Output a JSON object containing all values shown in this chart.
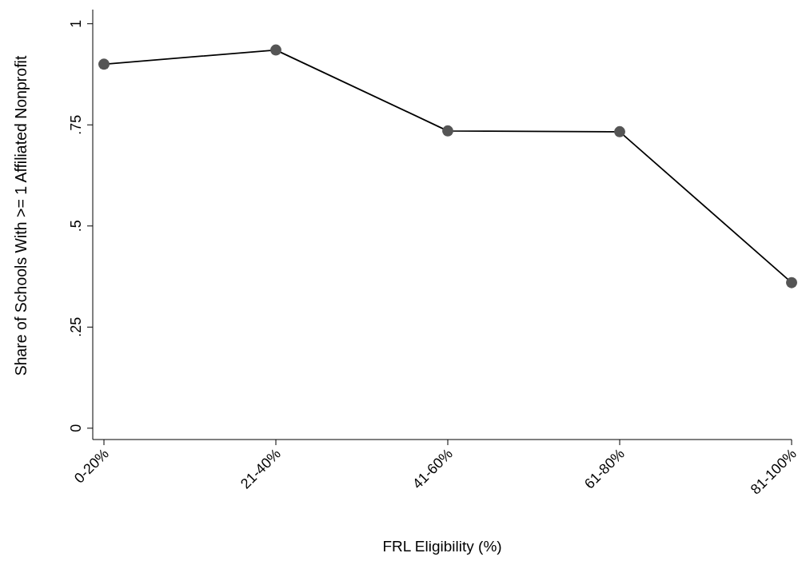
{
  "chart_data": {
    "type": "line",
    "xlabel": "FRL Eligibility (%)",
    "ylabel": "Share of Schools With >= 1 Affiliated Nonprofit",
    "categories": [
      "0-20%",
      "21-40%",
      "41-60%",
      "61-80%",
      "81-100%"
    ],
    "series": [
      {
        "color": "#555555",
        "values": [
          0.9,
          0.935,
          0.735,
          0.733,
          0.36
        ]
      }
    ],
    "ylim": [
      -0.028,
      1.035
    ],
    "yticks": [
      0,
      {
        "value": 0.25,
        "label": ".25"
      },
      {
        "value": 0.5,
        "label": ".5"
      },
      {
        "value": 0.75,
        "label": ".75"
      },
      1
    ],
    "marker": "circle",
    "line_style": "solid"
  }
}
